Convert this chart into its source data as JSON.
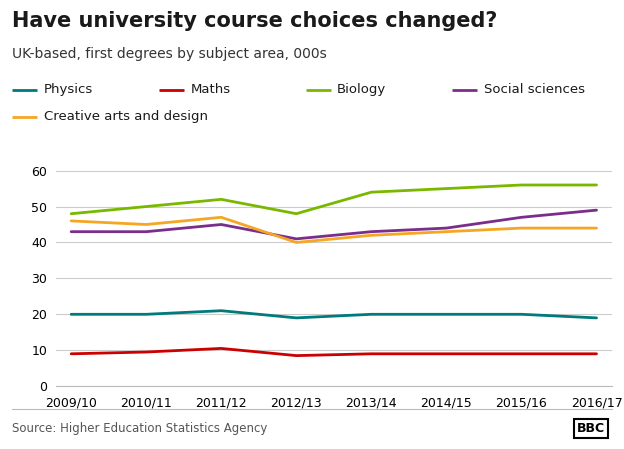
{
  "title": "Have university course choices changed?",
  "subtitle": "UK-based, first degrees by subject area, 000s",
  "source": "Source: Higher Education Statistics Agency",
  "x_labels": [
    "2009/10",
    "2010/11",
    "2011/12",
    "2012/13",
    "2013/14",
    "2014/15",
    "2015/16",
    "2016/17"
  ],
  "series": [
    {
      "name": "Physics",
      "color": "#007a7a",
      "values": [
        20,
        20,
        21,
        19,
        20,
        20,
        20,
        19
      ]
    },
    {
      "name": "Maths",
      "color": "#cc0000",
      "values": [
        9,
        9.5,
        10.5,
        8.5,
        9,
        9,
        9,
        9
      ]
    },
    {
      "name": "Biology",
      "color": "#7ab800",
      "values": [
        48,
        50,
        52,
        48,
        54,
        55,
        56,
        56
      ]
    },
    {
      "name": "Social sciences",
      "color": "#7b2d8b",
      "values": [
        43,
        43,
        45,
        41,
        43,
        44,
        47,
        49
      ]
    },
    {
      "name": "Creative arts and design",
      "color": "#f5a623",
      "values": [
        46,
        45,
        47,
        40,
        42,
        43,
        44,
        44
      ]
    }
  ],
  "ylim": [
    0,
    65
  ],
  "yticks": [
    0,
    10,
    20,
    30,
    40,
    50,
    60
  ],
  "background_color": "#ffffff",
  "grid_color": "#cccccc",
  "title_fontsize": 15,
  "subtitle_fontsize": 10,
  "tick_fontsize": 9,
  "legend_fontsize": 9.5,
  "source_fontsize": 8.5
}
